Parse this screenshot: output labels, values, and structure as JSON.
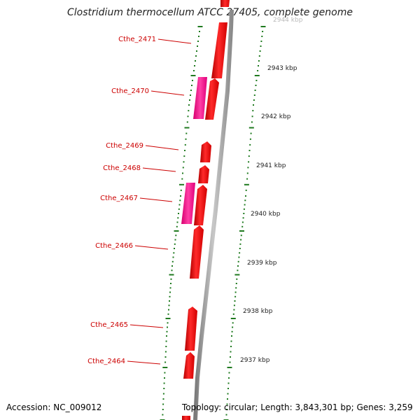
{
  "title": "Clostridium thermocellum ATCC 27405, complete genome",
  "accession": "Accession: NC_009012",
  "summary": "Topology: circular; Length: 3,843,301 bp; Genes: 3,259",
  "colors": {
    "gene_red": "#ff0000",
    "gene_pink": "#ff1493",
    "label_red": "#cc0000",
    "backbone": "#999999",
    "tick_green": "#1f7a1f"
  },
  "scale_labels": [
    "2944 kbp",
    "2943 kbp",
    "2942 kbp",
    "2941 kbp",
    "2940 kbp",
    "2939 kbp",
    "2938 kbp",
    "2937 kbp"
  ],
  "genes": [
    "Cthe_2471",
    "Cthe_2470",
    "Cthe_2469",
    "Cthe_2468",
    "Cthe_2467",
    "Cthe_2466",
    "Cthe_2465",
    "Cthe_2464"
  ]
}
